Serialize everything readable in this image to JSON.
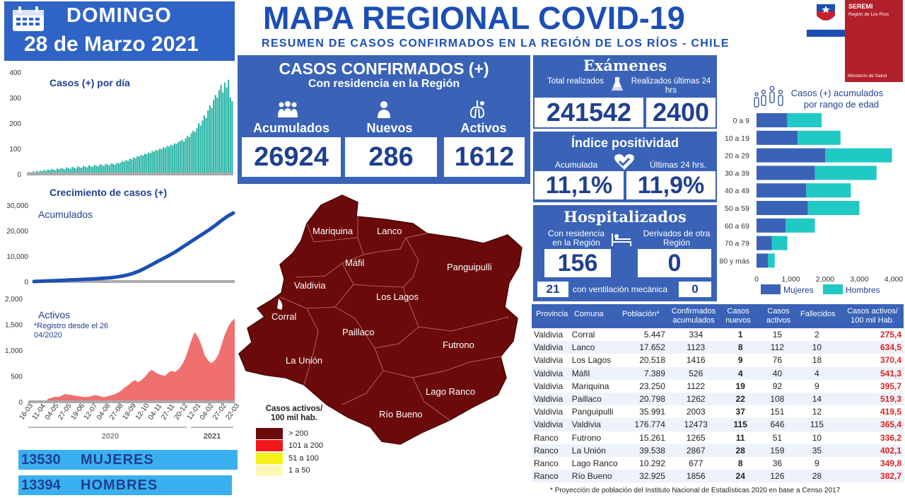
{
  "header": {
    "day": "DOMINGO",
    "date": "28 de Marzo 2021",
    "title": "MAPA REGIONAL COVID-19",
    "subtitle": "RESUMEN DE CASOS CONFIRMADOS EN LA REGIÓN DE LOS RÍOS - CHILE"
  },
  "logo": {
    "line1": "SEREMI",
    "line2": "Región de Los Ríos",
    "line3": "Ministerio de Salud"
  },
  "confirmed": {
    "title": "CASOS CONFIRMADOS (+)",
    "subtitle": "Con residencia en la Región",
    "acumulados_label": "Acumulados",
    "acumulados": "26924",
    "nuevos_label": "Nuevos",
    "nuevos": "286",
    "activos_label": "Activos",
    "activos": "1612"
  },
  "exams": {
    "title": "Exámenes",
    "total_label": "Total realizados",
    "total": "241542",
    "last24_label": "Realizados últimas 24 hrs",
    "last24": "2400"
  },
  "positivity": {
    "title": "Índice positividad",
    "acum_label": "Acumulada",
    "acum": "11,1%",
    "last_label": "Últimas 24 hrs.",
    "last": "11,9%"
  },
  "hospital": {
    "title": "Hospitalizados",
    "res_label": "Con residencia en la Región",
    "res": "156",
    "der_label": "Derivados de otra Región",
    "der": "0",
    "vent": "21",
    "vent_label": "con ventilación mecánica",
    "vent_other": "0"
  },
  "gender": {
    "mujeres_value": "13530",
    "mujeres_label": "MUJERES",
    "hombres_value": "13394",
    "hombres_label": "HOMBRES"
  },
  "map": {
    "communes": [
      "Mariquina",
      "Lanco",
      "Máfil",
      "Panguipulli",
      "Valdivia",
      "Los Lagos",
      "Corral",
      "Paillaco",
      "Futrono",
      "La Unión",
      "Lago Ranco",
      "Río Bueno"
    ],
    "legend_title": "Casos activos/ 100 mil hab.",
    "legend": [
      {
        "label": "> 200",
        "color": "#6b0a0a"
      },
      {
        "label": "101 a 200",
        "color": "#f01818"
      },
      {
        "label": "51 a 100",
        "color": "#f7f11a"
      },
      {
        "label": "1 a 50",
        "color": "#fdf7b8"
      }
    ]
  },
  "table": {
    "headers": [
      "Provincia",
      "Comuna",
      "Población*",
      "Confirmados acumulados",
      "Casos nuevos",
      "Casos activos",
      "Fallecidos",
      "Casos activos/ 100 mil Hab."
    ],
    "rows": [
      [
        "Valdivia",
        "Corral",
        "5.447",
        "334",
        "1",
        "15",
        "2",
        "275,4"
      ],
      [
        "Valdivia",
        "Lanco",
        "17.652",
        "1123",
        "8",
        "112",
        "10",
        "634,5"
      ],
      [
        "Valdivia",
        "Los Lagos",
        "20.518",
        "1416",
        "9",
        "76",
        "18",
        "370,4"
      ],
      [
        "Valdivia",
        "Máfil",
        "7.389",
        "526",
        "4",
        "40",
        "4",
        "541,3"
      ],
      [
        "Valdivia",
        "Mariquina",
        "23.250",
        "1122",
        "19",
        "92",
        "9",
        "395,7"
      ],
      [
        "Valdivia",
        "Paillaco",
        "20.798",
        "1262",
        "22",
        "108",
        "14",
        "519,3"
      ],
      [
        "Valdivia",
        "Panguipulli",
        "35.991",
        "2003",
        "37",
        "151",
        "12",
        "419,5"
      ],
      [
        "Valdivia",
        "Valdivia",
        "176.774",
        "12473",
        "115",
        "646",
        "115",
        "365,4"
      ],
      [
        "Ranco",
        "Futrono",
        "15.261",
        "1265",
        "11",
        "51",
        "10",
        "336,2"
      ],
      [
        "Ranco",
        "La Unión",
        "39.538",
        "2867",
        "28",
        "159",
        "35",
        "402,1"
      ],
      [
        "Ranco",
        "Lago Ranco",
        "10.292",
        "677",
        "8",
        "36",
        "9",
        "349,8"
      ],
      [
        "Ranco",
        "Río Bueno",
        "32.925",
        "1856",
        "24",
        "126",
        "28",
        "382,7"
      ]
    ],
    "footnote": "* Proyección de población del Instituto Nacional de Estadísticas 2020 en base a Censo 2017"
  },
  "chart_data": [
    {
      "type": "bar",
      "title": "Casos (+) por día",
      "ylim": [
        0,
        400
      ],
      "yticks": [
        0,
        100,
        200,
        300,
        400
      ],
      "color": "#2ab5a5",
      "values": [
        5,
        8,
        6,
        10,
        7,
        12,
        9,
        14,
        11,
        16,
        13,
        18,
        15,
        20,
        17,
        14,
        22,
        19,
        24,
        21,
        18,
        26,
        23,
        20,
        28,
        25,
        22,
        30,
        27,
        24,
        32,
        29,
        26,
        34,
        31,
        28,
        36,
        33,
        30,
        38,
        35,
        32,
        40,
        37,
        34,
        42,
        39,
        36,
        44,
        41,
        45,
        50,
        48,
        55,
        52,
        60,
        58,
        65,
        62,
        70,
        68,
        75,
        72,
        80,
        78,
        85,
        82,
        90,
        88,
        95,
        92,
        100,
        98,
        105,
        102,
        110,
        108,
        115,
        112,
        120,
        118,
        125,
        130,
        135,
        128,
        140,
        150,
        145,
        160,
        170,
        165,
        180,
        200,
        190,
        210,
        230,
        220,
        250,
        270,
        260,
        290,
        310,
        300,
        330,
        350,
        320,
        360,
        340,
        370,
        300,
        286
      ]
    },
    {
      "type": "line",
      "title": "Crecimiento de casos (+)",
      "series": [
        {
          "name": "Acumulados",
          "values": [
            0,
            100,
            200,
            300,
            400,
            500,
            600,
            700,
            800,
            900,
            1000,
            1150,
            1300,
            1500,
            1750,
            2100,
            2600,
            3300,
            4200,
            5300,
            6500,
            7800,
            9000,
            10200,
            11500,
            13000,
            14500,
            16000,
            17500,
            19000,
            20500,
            22200,
            24000,
            25600,
            26924
          ]
        }
      ],
      "ylim": [
        0,
        30000
      ],
      "yticks": [
        "0",
        "10,000",
        "20,000",
        "30,000"
      ],
      "color": "#1c4fb3"
    },
    {
      "type": "area",
      "title": "Activos",
      "annotation": "*Registro desde el 26/04/2020",
      "ylim": [
        0,
        2000
      ],
      "yticks": [
        "0",
        "500",
        "1,000",
        "1,500",
        "2,000"
      ],
      "color": "#f07070",
      "xticks": [
        "16-03",
        "11-04",
        "04-05",
        "27-05",
        "19-06",
        "12-07",
        "04-08",
        "27-08",
        "19-09",
        "12-10",
        "04-11",
        "27-11",
        "20-12",
        "12-01",
        "04-02",
        "27-02",
        "22-03"
      ],
      "xgroups": [
        "2020",
        "2021"
      ],
      "values": [
        0,
        0,
        0,
        0,
        0,
        0,
        60,
        80,
        100,
        90,
        120,
        150,
        140,
        130,
        120,
        110,
        100,
        90,
        100,
        110,
        130,
        120,
        100,
        90,
        110,
        130,
        150,
        180,
        220,
        280,
        320,
        380,
        420,
        380,
        420,
        480,
        560,
        620,
        580,
        540,
        520,
        500,
        560,
        600,
        580,
        620,
        700,
        820,
        1000,
        1200,
        1350,
        1250,
        1100,
        900,
        800,
        750,
        800,
        900,
        1100,
        1300,
        1450,
        1550,
        1612
      ]
    },
    {
      "type": "bar",
      "title": "Casos (+) acumulados por rango de edad",
      "categories": [
        "0 a 9",
        "10 a 19",
        "20 a 29",
        "30 a 39",
        "40 a 49",
        "50 a 59",
        "60 a 69",
        "70 a 79",
        "80 y más"
      ],
      "series": [
        {
          "name": "Mujeres",
          "color": "#3a63b8",
          "values": [
            900,
            1200,
            2000,
            1700,
            1450,
            1500,
            850,
            450,
            330
          ]
        },
        {
          "name": "Hombres",
          "color": "#21c9c4",
          "values": [
            1000,
            1250,
            1950,
            1800,
            1300,
            1500,
            850,
            450,
            200
          ]
        }
      ],
      "xticks": [
        "0",
        "1,000",
        "2,000",
        "3,000",
        "4,000"
      ],
      "xlim": [
        0,
        4000
      ]
    }
  ]
}
